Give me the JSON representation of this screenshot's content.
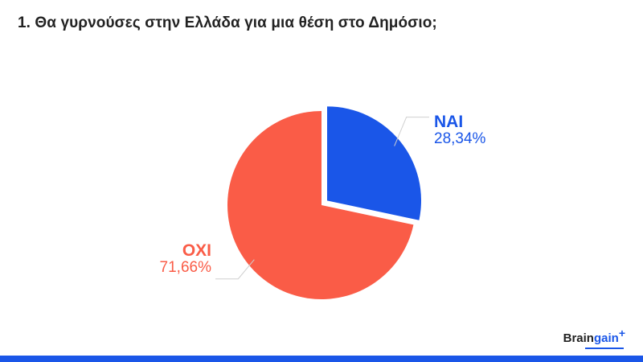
{
  "title": "1. Θα γυρνούσες στην Ελλάδα για μια θέση στο Δημόσιο;",
  "logo": {
    "text_dark": "Brain",
    "text_accent": "gain",
    "symbol": "+"
  },
  "colors": {
    "yes": "#1a56e8",
    "no": "#fa5c47",
    "accent": "#1a56e8"
  },
  "chart_data": {
    "type": "pie",
    "title": "1. Θα γυρνούσες στην Ελλάδα για μια θέση στο Δημόσιο;",
    "categories": [
      "ΝΑΙ",
      "ΟΧΙ"
    ],
    "values": [
      28.34,
      71.66
    ],
    "value_labels": [
      "28,34%",
      "71,66%"
    ],
    "exploded": "ΝΑΙ",
    "start": "12 o'clock, clockwise"
  }
}
